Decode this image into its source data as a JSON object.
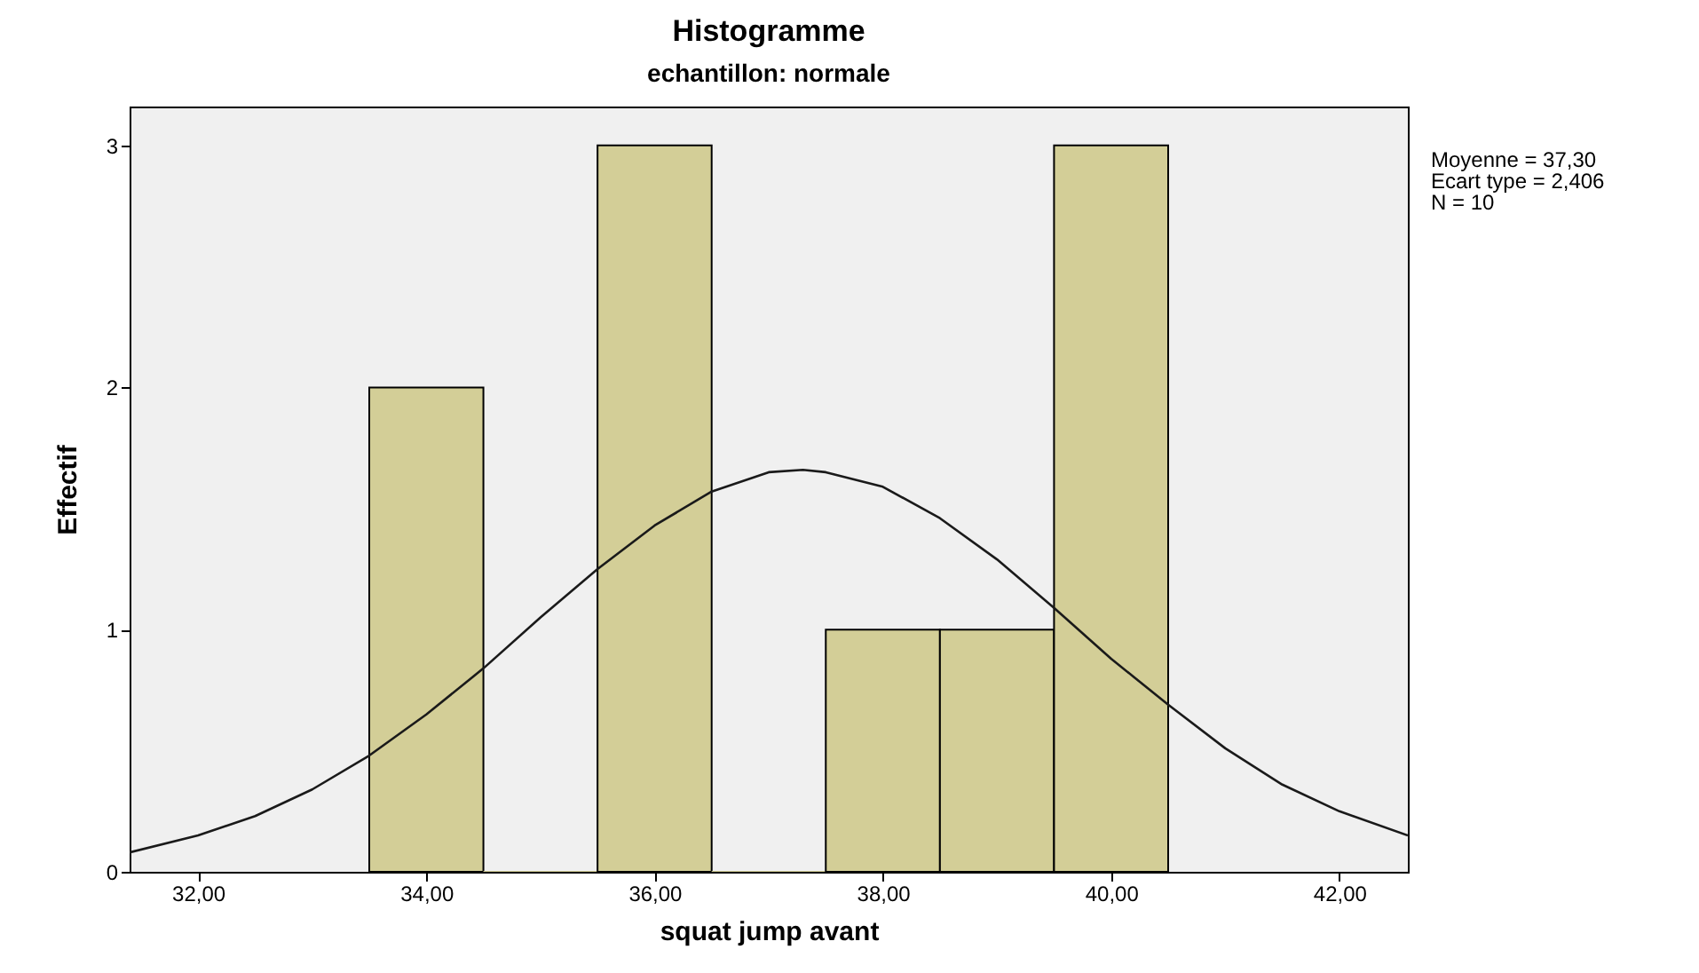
{
  "chart_data": {
    "type": "histogram",
    "title": "Histogramme",
    "subtitle": "echantillon: normale",
    "xlabel": "squat  jump avant",
    "ylabel": "Effectif",
    "bins": [
      33.5,
      34.5,
      35.5,
      36.5,
      37.5,
      38.5,
      39.5,
      40.5
    ],
    "values": [
      2,
      0,
      3,
      0,
      1,
      1,
      3
    ],
    "color": "#d3ce97",
    "series": [
      {
        "type": "line",
        "color": "#1a1a1a",
        "x": [
          31.4,
          32,
          32.5,
          33,
          33.5,
          34,
          34.5,
          35,
          35.5,
          36,
          36.5,
          37,
          37.3,
          37.5,
          38,
          38.5,
          39,
          39.5,
          40,
          40.5,
          41,
          41.5,
          42,
          42.6
        ],
        "values": [
          0.08,
          0.15,
          0.23,
          0.34,
          0.48,
          0.65,
          0.84,
          1.05,
          1.25,
          1.43,
          1.57,
          1.65,
          1.66,
          1.65,
          1.59,
          1.46,
          1.29,
          1.09,
          0.88,
          0.69,
          0.51,
          0.36,
          0.25,
          0.15
        ]
      }
    ],
    "xlim": [
      31.4,
      42.6
    ],
    "xticks": [
      {
        "value": 32,
        "label": "32,00"
      },
      {
        "value": 34,
        "label": "34,00"
      },
      {
        "value": 36,
        "label": "36,00"
      },
      {
        "value": 38,
        "label": "38,00"
      },
      {
        "value": 40,
        "label": "40,00"
      },
      {
        "value": 42,
        "label": "42,00"
      }
    ],
    "ylim": [
      0,
      3.16
    ],
    "yticks": [
      0,
      1,
      2,
      3
    ],
    "annotations": [
      "Moyenne = 37,30",
      "Ecart type = 2,406",
      "N = 10"
    ]
  }
}
